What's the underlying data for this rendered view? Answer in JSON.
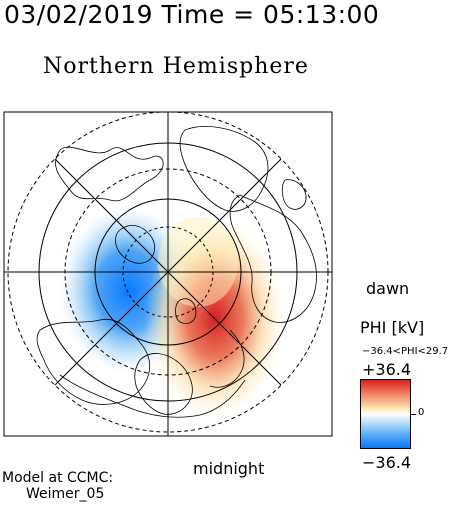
{
  "header": {
    "timestamp": "03/02/2019 Time = 05:13:00",
    "hemisphere": "Northern Hemisphere"
  },
  "map": {
    "dawn_label": "dawn",
    "midnight_label": "midnight",
    "colors": {
      "positive": "#d92020",
      "negative": "#0a78ff",
      "neutral": "#fff4c4"
    }
  },
  "colorbar": {
    "title": "PHI [kV]",
    "range_text": "−36.4<PHI<29.7",
    "max_label": "+36.4",
    "zero_label": "0",
    "min_label": "−36.4"
  },
  "footer": {
    "model_line1": "Model at CCMC:",
    "model_line2": "Weimer_05"
  }
}
